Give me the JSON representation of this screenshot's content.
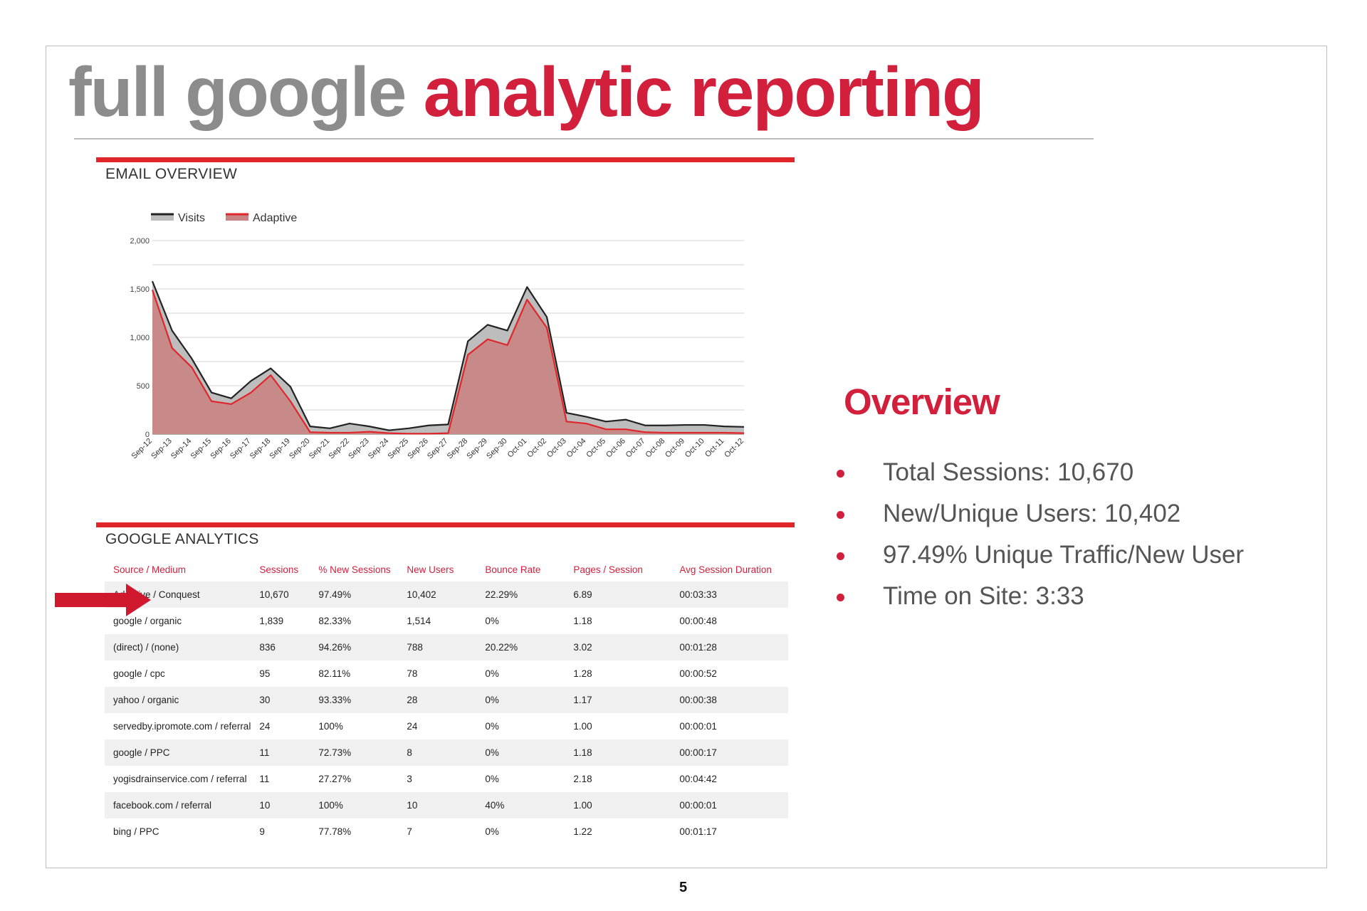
{
  "title": {
    "part1": "full google",
    "part2": "analytic reporting"
  },
  "email_section_title": "EMAIL OVERVIEW",
  "ga_section_title": "GOOGLE ANALYTICS",
  "chart_data": {
    "type": "area",
    "legend_placement": "top-left",
    "grid": true,
    "ylim": [
      0,
      2000
    ],
    "yticks": [
      "2,000",
      "1,500",
      "1,000",
      "500",
      "0"
    ],
    "ytick_values": [
      2000,
      1500,
      1000,
      500,
      0
    ],
    "x": [
      "Sep-12",
      "Sep-13",
      "Sep-14",
      "Sep-15",
      "Sep-16",
      "Sep-17",
      "Sep-18",
      "Sep-19",
      "Sep-20",
      "Sep-21",
      "Sep-22",
      "Sep-23",
      "Sep-24",
      "Sep-25",
      "Sep-26",
      "Sep-27",
      "Sep-28",
      "Sep-29",
      "Sep-30",
      "Oct-01",
      "Oct-02",
      "Oct-03",
      "Oct-04",
      "Oct-05",
      "Oct-06",
      "Oct-07",
      "Oct-08",
      "Oct-09",
      "Oct-10",
      "Oct-11",
      "Oct-12"
    ],
    "series": [
      {
        "name": "Visits",
        "color": "#222222",
        "fill": "#bdbdbd",
        "values": [
          1580,
          1070,
          780,
          430,
          370,
          550,
          680,
          490,
          80,
          60,
          110,
          80,
          40,
          60,
          90,
          100,
          960,
          1130,
          1070,
          1520,
          1210,
          220,
          180,
          130,
          150,
          90,
          90,
          95,
          95,
          80,
          75
        ]
      },
      {
        "name": "Adaptive",
        "color": "#e0262b",
        "fill": "#c98383",
        "values": [
          1490,
          890,
          690,
          340,
          310,
          430,
          610,
          340,
          20,
          15,
          15,
          25,
          10,
          5,
          5,
          10,
          820,
          980,
          920,
          1390,
          1100,
          130,
          110,
          50,
          50,
          20,
          15,
          15,
          15,
          15,
          10
        ]
      }
    ]
  },
  "table": {
    "columns": [
      "Source / Medium",
      "Sessions",
      "% New Sessions",
      "New Users",
      "Bounce Rate",
      "Pages / Session",
      "Avg Session Duration"
    ],
    "rows": [
      [
        "Adaptive / Conquest",
        "10,670",
        "97.49%",
        "10,402",
        "22.29%",
        "6.89",
        "00:03:33"
      ],
      [
        "google / organic",
        "1,839",
        "82.33%",
        "1,514",
        "0%",
        "1.18",
        "00:00:48"
      ],
      [
        "(direct) / (none)",
        "836",
        "94.26%",
        "788",
        "20.22%",
        "3.02",
        "00:01:28"
      ],
      [
        "google / cpc",
        "95",
        "82.11%",
        "78",
        "0%",
        "1.28",
        "00:00:52"
      ],
      [
        "yahoo / organic",
        "30",
        "93.33%",
        "28",
        "0%",
        "1.17",
        "00:00:38"
      ],
      [
        "servedby.ipromote.com / referral",
        "24",
        "100%",
        "24",
        "0%",
        "1.00",
        "00:00:01"
      ],
      [
        "google / PPC",
        "11",
        "72.73%",
        "8",
        "0%",
        "1.18",
        "00:00:17"
      ],
      [
        "yogisdrainservice.com / referral",
        "11",
        "27.27%",
        "3",
        "0%",
        "2.18",
        "00:04:42"
      ],
      [
        "facebook.com / referral",
        "10",
        "100%",
        "10",
        "40%",
        "1.00",
        "00:00:01"
      ],
      [
        "bing / PPC",
        "9",
        "77.78%",
        "7",
        "0%",
        "1.22",
        "00:01:17"
      ]
    ]
  },
  "overview": {
    "heading": "Overview",
    "items": [
      "Total Sessions: 10,670",
      "New/Unique Users: 10,402",
      "97.49% Unique Traffic/New User",
      "Time on Site: 3:33"
    ]
  },
  "page_number": "5",
  "colors": {
    "accent_red": "#d21f3c",
    "bar_red": "#e0262b",
    "title_grey": "#8c8c8c",
    "arrow_red": "#d0192f"
  }
}
